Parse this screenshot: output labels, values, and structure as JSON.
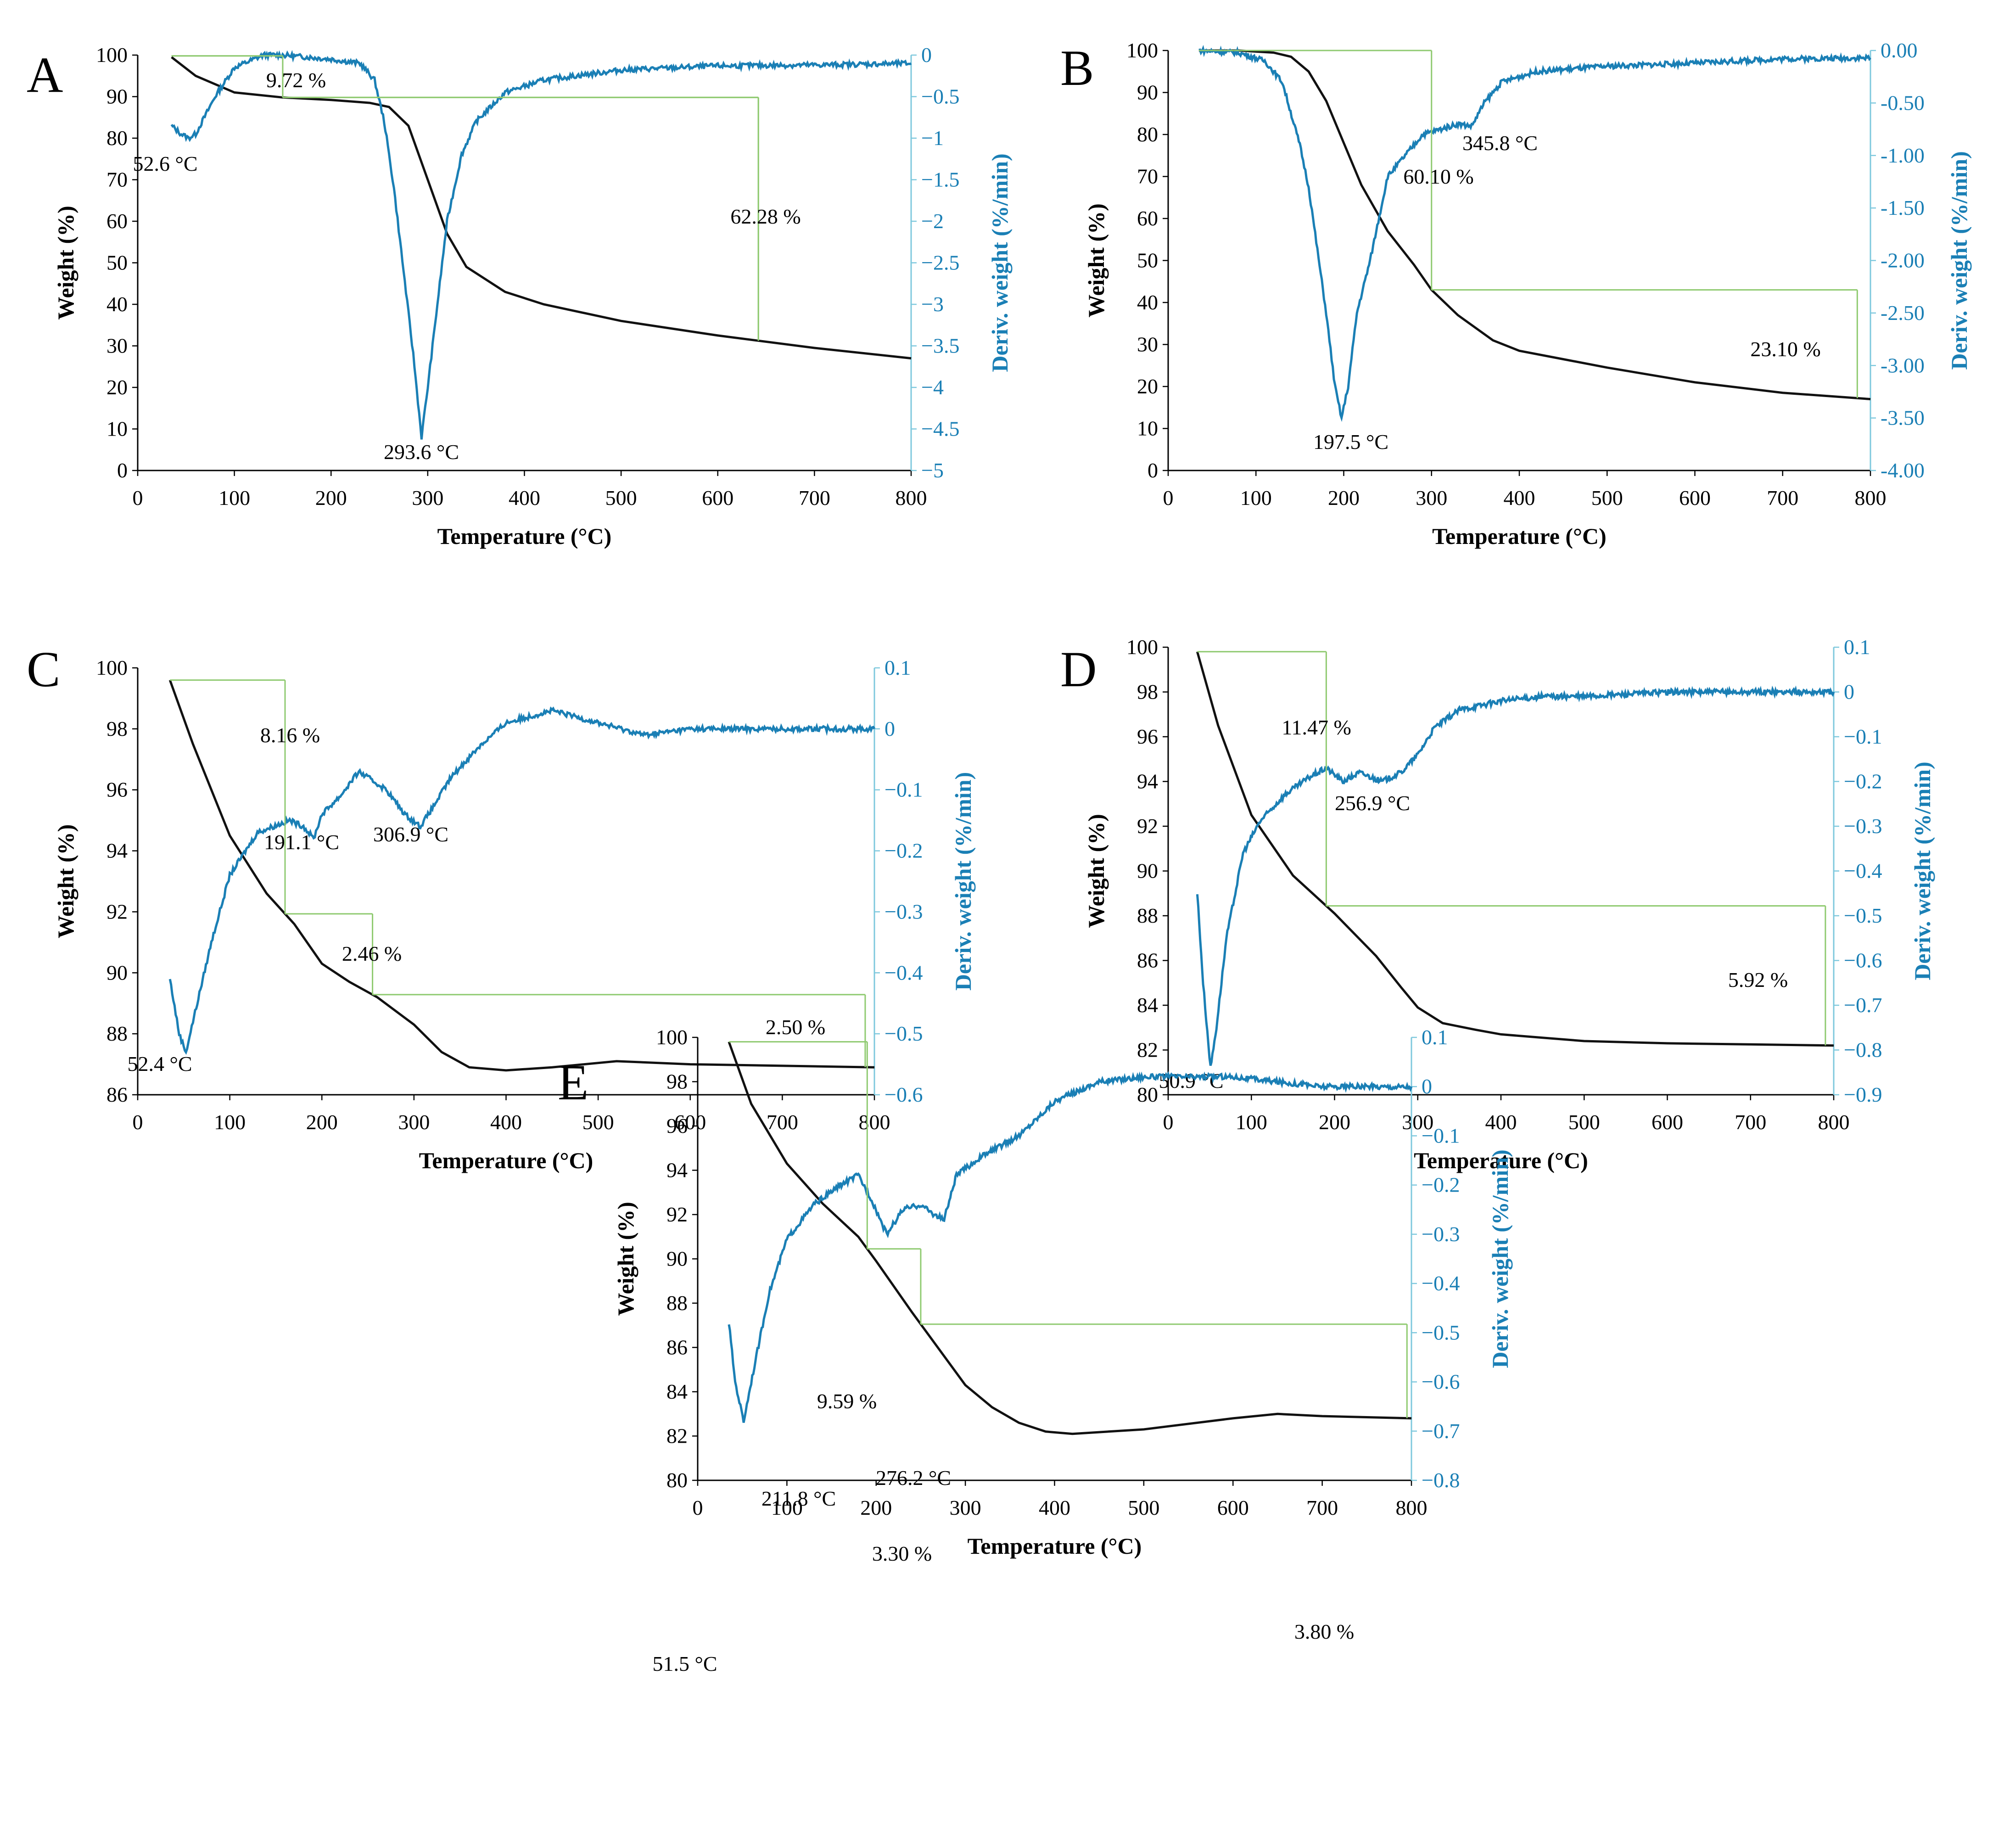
{
  "colors": {
    "weight": "#111111",
    "deriv": "#1a7fb5",
    "deriv_axis": "#7ec8dd",
    "dimension": "#8fca70"
  },
  "chart_data": [
    {
      "panel": "A",
      "type": "line",
      "xlabel": "Temperature (°C)",
      "ylabel": "Weight (%)",
      "y2label": "Deriv. weight (%/min)",
      "xlim": [
        0,
        800
      ],
      "ylim": [
        0,
        100
      ],
      "y2lim": [
        -5,
        0
      ],
      "x_ticks": [
        "0",
        "100",
        "200",
        "300",
        "400",
        "500",
        "600",
        "700",
        "800"
      ],
      "y_ticks": [
        "0",
        "10",
        "20",
        "30",
        "40",
        "50",
        "60",
        "70",
        "80",
        "90",
        "100"
      ],
      "y2_ticks": [
        "−5",
        "−4.5",
        "−4",
        "−3.5",
        "−3",
        "−2.5",
        "−2",
        "−1.5",
        "−1",
        "−0.5",
        "0"
      ],
      "series": [
        {
          "name": "Weight",
          "axis": "left",
          "x": [
            35,
            60,
            100,
            150,
            200,
            240,
            260,
            280,
            300,
            320,
            340,
            380,
            420,
            500,
            600,
            700,
            800
          ],
          "y": [
            99.5,
            95,
            91,
            89.8,
            89.2,
            88.5,
            87.5,
            83,
            70,
            57,
            49,
            43,
            40,
            36,
            32.5,
            29.5,
            27
          ]
        },
        {
          "name": "Deriv. weight",
          "axis": "right",
          "x": [
            35,
            45,
            52.6,
            60,
            80,
            100,
            130,
            150,
            200,
            230,
            245,
            255,
            265,
            275,
            285,
            293.6,
            300,
            310,
            320,
            335,
            350,
            380,
            420,
            500,
            600,
            700,
            800
          ],
          "y": [
            -0.85,
            -0.95,
            -1.0,
            -0.95,
            -0.5,
            -0.15,
            0,
            0,
            -0.05,
            -0.1,
            -0.3,
            -0.8,
            -1.6,
            -2.6,
            -3.6,
            -4.6,
            -4.0,
            -3.0,
            -2.0,
            -1.2,
            -0.8,
            -0.45,
            -0.3,
            -0.18,
            -0.13,
            -0.12,
            -0.1
          ]
        }
      ],
      "annotations": [
        {
          "text": "52.6 °C",
          "x": 52.6,
          "y2": -1.0
        },
        {
          "text": "293.6 °C",
          "x": 293.6,
          "y2": -4.6
        },
        {
          "text": "9.72  %",
          "step": true
        },
        {
          "text": "62.28 %",
          "step": true
        }
      ]
    },
    {
      "panel": "B",
      "type": "line",
      "xlabel": "Temperature (°C)",
      "ylabel": "Weight (%)",
      "y2label": "Deriv. weight (%/min)",
      "xlim": [
        0,
        800
      ],
      "ylim": [
        0,
        100
      ],
      "y2lim": [
        -4,
        0
      ],
      "x_ticks": [
        "0",
        "100",
        "200",
        "300",
        "400",
        "500",
        "600",
        "700",
        "800"
      ],
      "y_ticks": [
        "0",
        "10",
        "20",
        "30",
        "40",
        "50",
        "60",
        "70",
        "80",
        "90",
        "100"
      ],
      "y2_ticks": [
        "-4.00",
        "-3.50",
        "-3.00",
        "-2.50",
        "-2.00",
        "-1.50",
        "-1.00",
        "-0.50",
        "0.00"
      ],
      "series": [
        {
          "name": "Weight",
          "axis": "left",
          "x": [
            35,
            80,
            120,
            140,
            160,
            180,
            200,
            220,
            250,
            280,
            300,
            330,
            370,
            400,
            450,
            500,
            600,
            700,
            800
          ],
          "y": [
            100,
            100,
            99.5,
            98.5,
            95,
            88,
            78,
            68,
            57,
            49,
            43,
            37,
            31,
            28.5,
            26.5,
            24.5,
            21,
            18.5,
            17
          ]
        },
        {
          "name": "Deriv. weight",
          "axis": "right",
          "x": [
            35,
            80,
            110,
            130,
            150,
            160,
            170,
            180,
            190,
            197.5,
            205,
            215,
            230,
            250,
            270,
            290,
            310,
            330,
            345.8,
            360,
            380,
            420,
            500,
            600,
            700,
            800
          ],
          "y": [
            0,
            -0.02,
            -0.1,
            -0.3,
            -0.9,
            -1.3,
            -1.9,
            -2.5,
            -3.2,
            -3.5,
            -3.2,
            -2.5,
            -2.0,
            -1.2,
            -1.0,
            -0.8,
            -0.75,
            -0.7,
            -0.72,
            -0.5,
            -0.3,
            -0.2,
            -0.15,
            -0.12,
            -0.08,
            -0.07
          ]
        }
      ],
      "annotations": [
        {
          "text": "197.5 °C",
          "x": 197.5,
          "y2": -3.5
        },
        {
          "text": "345.8 °C",
          "x": 345.8,
          "y2": -0.72
        },
        {
          "text": "60.10 %",
          "step": true
        },
        {
          "text": "23.10 %",
          "step": true
        }
      ]
    },
    {
      "panel": "C",
      "type": "line",
      "xlabel": "Temperature (°C)",
      "ylabel": "Weight (%)",
      "y2label": "Deriv. weight (%/min)",
      "xlim": [
        0,
        800
      ],
      "ylim": [
        86,
        100
      ],
      "y2lim": [
        -0.6,
        0.1
      ],
      "x_ticks": [
        "0",
        "100",
        "200",
        "300",
        "400",
        "500",
        "600",
        "700",
        "800"
      ],
      "y_ticks": [
        "86",
        "88",
        "90",
        "92",
        "94",
        "96",
        "98",
        "100"
      ],
      "y2_ticks": [
        "−0.6",
        "−0.5",
        "−0.4",
        "−0.3",
        "−0.2",
        "−0.1",
        "0",
        "0.1"
      ],
      "series": [
        {
          "name": "Weight",
          "axis": "left",
          "x": [
            35,
            60,
            100,
            140,
            170,
            200,
            230,
            260,
            300,
            330,
            360,
            400,
            450,
            520,
            600,
            700,
            800
          ],
          "y": [
            99.6,
            97.5,
            94.5,
            92.6,
            91.6,
            90.3,
            89.7,
            89.2,
            88.3,
            87.4,
            86.9,
            86.8,
            86.9,
            87.1,
            87.0,
            86.95,
            86.9
          ]
        },
        {
          "name": "Deriv. weight",
          "axis": "right",
          "x": [
            35,
            45,
            52.4,
            60,
            80,
            100,
            130,
            165,
            180,
            191.1,
            200,
            220,
            240,
            270,
            290,
            306.9,
            320,
            340,
            370,
            400,
            450,
            500,
            550,
            600,
            700,
            800
          ],
          "y": [
            -0.41,
            -0.5,
            -0.53,
            -0.48,
            -0.35,
            -0.24,
            -0.17,
            -0.15,
            -0.16,
            -0.18,
            -0.14,
            -0.11,
            -0.07,
            -0.1,
            -0.14,
            -0.16,
            -0.13,
            -0.08,
            -0.03,
            0.01,
            0.03,
            0.01,
            -0.01,
            0,
            0,
            0
          ]
        }
      ],
      "annotations": [
        {
          "text": "52.4 °C",
          "x": 52.4,
          "y2": -0.53
        },
        {
          "text": "191.1 °C",
          "x": 191.1,
          "y2": -0.18
        },
        {
          "text": "306.9 °C",
          "x": 306.9,
          "y2": -0.16
        },
        {
          "text": "8.16 %",
          "step": true
        },
        {
          "text": "2.46 %",
          "step": true
        },
        {
          "text": "2.50 %",
          "step": true
        }
      ]
    },
    {
      "panel": "D",
      "type": "line",
      "xlabel": "Temperature (°C)",
      "ylabel": "Weight (%)",
      "y2label": "Deriv. weight (%/min)",
      "xlim": [
        0,
        800
      ],
      "ylim": [
        80,
        100
      ],
      "y2lim": [
        -0.9,
        0.1
      ],
      "x_ticks": [
        "0",
        "100",
        "200",
        "300",
        "400",
        "500",
        "600",
        "700",
        "800"
      ],
      "y_ticks": [
        "80",
        "82",
        "84",
        "86",
        "88",
        "90",
        "92",
        "94",
        "96",
        "98",
        "100"
      ],
      "y2_ticks": [
        "−0.9",
        "−0.8",
        "−0.7",
        "−0.6",
        "−0.5",
        "−0.4",
        "−0.3",
        "−0.2",
        "−0.1",
        "0",
        "0.1"
      ],
      "series": [
        {
          "name": "Weight",
          "axis": "left",
          "x": [
            35,
            60,
            100,
            150,
            200,
            250,
            280,
            300,
            330,
            370,
            400,
            450,
            500,
            600,
            700,
            800
          ],
          "y": [
            99.8,
            96.5,
            92.5,
            89.8,
            88.1,
            86.2,
            84.8,
            83.9,
            83.2,
            82.9,
            82.7,
            82.55,
            82.4,
            82.3,
            82.25,
            82.2
          ]
        },
        {
          "name": "Deriv. weight",
          "axis": "right",
          "x": [
            35,
            42,
            50.9,
            58,
            70,
            90,
            110,
            140,
            170,
            190,
            210,
            230,
            256.9,
            280,
            300,
            320,
            350,
            400,
            450,
            500,
            600,
            700,
            800
          ],
          "y": [
            -0.45,
            -0.65,
            -0.84,
            -0.75,
            -0.55,
            -0.36,
            -0.29,
            -0.23,
            -0.19,
            -0.17,
            -0.2,
            -0.18,
            -0.2,
            -0.18,
            -0.14,
            -0.08,
            -0.04,
            -0.02,
            -0.01,
            -0.01,
            0,
            0,
            0
          ]
        }
      ],
      "annotations": [
        {
          "text": "50.9 °C",
          "x": 50.9,
          "y2": -0.84
        },
        {
          "text": "256.9 °C",
          "x": 256.9,
          "y2": -0.2
        },
        {
          "text": "11.47 %",
          "step": true
        },
        {
          "text": "5.92 %",
          "step": true
        }
      ]
    },
    {
      "panel": "E",
      "type": "line",
      "xlabel": "Temperature (°C)",
      "ylabel": "Weight (%)",
      "y2label": "Deriv. weight (%/min)",
      "xlim": [
        0,
        800
      ],
      "ylim": [
        80,
        100
      ],
      "y2lim": [
        -0.8,
        0.1
      ],
      "x_ticks": [
        "0",
        "100",
        "200",
        "300",
        "400",
        "500",
        "600",
        "700",
        "800"
      ],
      "y_ticks": [
        "80",
        "82",
        "84",
        "86",
        "88",
        "90",
        "92",
        "94",
        "96",
        "98",
        "100"
      ],
      "y2_ticks": [
        "−0.8",
        "−0.7",
        "−0.6",
        "−0.5",
        "−0.4",
        "−0.3",
        "−0.2",
        "−0.1",
        "0",
        "0.1"
      ],
      "series": [
        {
          "name": "Weight",
          "axis": "left",
          "x": [
            35,
            60,
            100,
            140,
            180,
            200,
            240,
            260,
            300,
            330,
            360,
            390,
            420,
            500,
            600,
            650,
            700,
            800
          ],
          "y": [
            99.8,
            97,
            94.3,
            92.5,
            91,
            89.9,
            87.6,
            86.5,
            84.3,
            83.3,
            82.6,
            82.2,
            82.1,
            82.3,
            82.8,
            83.0,
            82.9,
            82.8
          ]
        },
        {
          "name": "Deriv. weight",
          "axis": "right",
          "x": [
            35,
            42,
            51.5,
            60,
            80,
            100,
            130,
            160,
            180,
            195,
            211.8,
            230,
            250,
            265,
            276.2,
            290,
            320,
            360,
            400,
            450,
            500,
            550,
            600,
            650,
            700,
            800
          ],
          "y": [
            -0.48,
            -0.6,
            -0.68,
            -0.6,
            -0.42,
            -0.31,
            -0.24,
            -0.2,
            -0.18,
            -0.23,
            -0.3,
            -0.25,
            -0.24,
            -0.26,
            -0.27,
            -0.18,
            -0.14,
            -0.1,
            -0.03,
            0.01,
            0.02,
            0.02,
            0.02,
            0.01,
            0,
            0
          ]
        }
      ],
      "annotations": [
        {
          "text": "51.5 °C",
          "x": 51.5,
          "y2": -0.68
        },
        {
          "text": "211.8 °C",
          "x": 211.8,
          "y2": -0.3
        },
        {
          "text": "276.2 °C",
          "x": 276.2,
          "y2": -0.27
        },
        {
          "text": "9.59 %",
          "step": true
        },
        {
          "text": "3.30 %",
          "step": true
        },
        {
          "text": "3.80 %",
          "step": true
        }
      ]
    }
  ]
}
